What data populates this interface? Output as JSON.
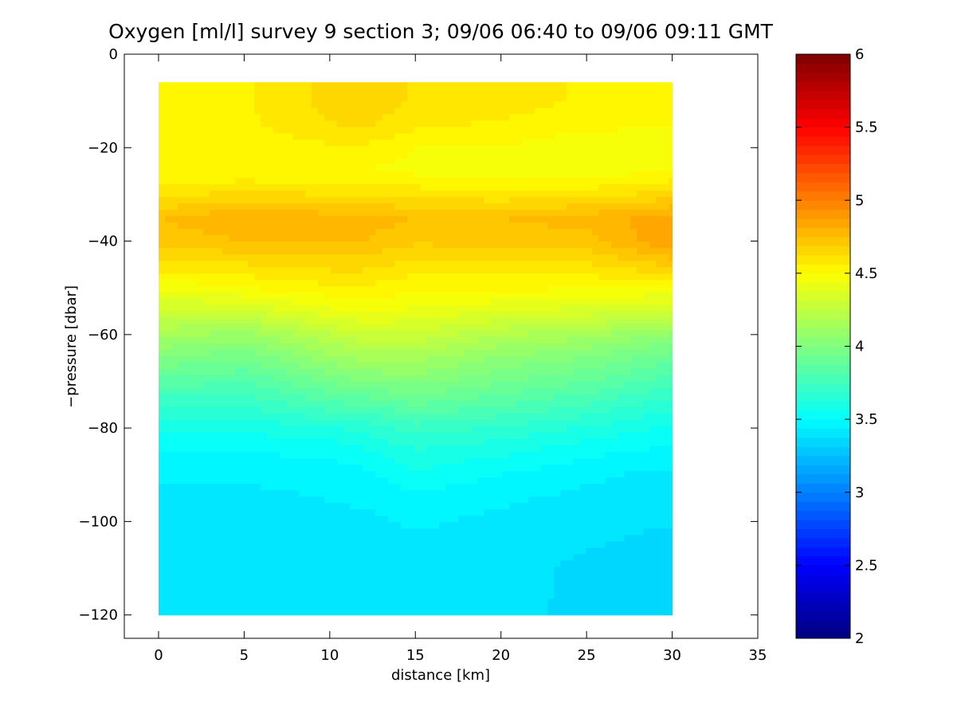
{
  "chart_data": {
    "type": "heatmap",
    "title": "Oxygen [ml/l] survey 9 section 3; 09/06 06:40 to 09/06 09:11 GMT",
    "xlabel": "distance [km]",
    "ylabel": "−pressure [dbar]",
    "xlim": [
      -2,
      35
    ],
    "ylim": [
      -125,
      0
    ],
    "x_ticks": [
      0,
      5,
      10,
      15,
      20,
      25,
      30,
      35
    ],
    "x_tick_labels": [
      "0",
      "5",
      "10",
      "15",
      "20",
      "25",
      "30",
      "35"
    ],
    "y_ticks": [
      0,
      -20,
      -40,
      -60,
      -80,
      -100,
      -120
    ],
    "y_tick_labels": [
      "0",
      "−20",
      "−40",
      "−60",
      "−80",
      "−100",
      "−120"
    ],
    "grid": false,
    "colorscale": "jet",
    "colorbar": {
      "clim": [
        2,
        6
      ],
      "ticks": [
        2,
        2.5,
        3,
        3.5,
        4,
        4.5,
        5,
        5.5,
        6
      ],
      "tick_labels": [
        "2",
        "2.5",
        "3",
        "3.5",
        "4",
        "4.5",
        "5",
        "5.5",
        "6"
      ]
    },
    "data_extent": {
      "x": [
        0,
        30
      ],
      "y": [
        -120,
        -6
      ]
    },
    "field": {
      "x": [
        0,
        5,
        10,
        12,
        15,
        20,
        25,
        30
      ],
      "y": [
        -6,
        -10,
        -15,
        -20,
        -25,
        -30,
        -35,
        -40,
        -45,
        -50,
        -55,
        -60,
        -65,
        -70,
        -75,
        -80,
        -85,
        -90,
        -95,
        -100,
        -105,
        -110,
        -115,
        -120
      ],
      "values": [
        [
          4.5,
          4.55,
          4.65,
          4.66,
          4.62,
          4.6,
          4.55,
          4.5
        ],
        [
          4.5,
          4.55,
          4.65,
          4.66,
          4.62,
          4.6,
          4.55,
          4.5
        ],
        [
          4.5,
          4.55,
          4.62,
          4.64,
          4.58,
          4.55,
          4.52,
          4.5
        ],
        [
          4.5,
          4.52,
          4.55,
          4.55,
          4.5,
          4.5,
          4.45,
          4.48
        ],
        [
          4.5,
          4.5,
          4.5,
          4.5,
          4.48,
          4.45,
          4.45,
          4.5
        ],
        [
          4.6,
          4.65,
          4.62,
          4.62,
          4.6,
          4.58,
          4.6,
          4.65
        ],
        [
          4.75,
          4.8,
          4.78,
          4.78,
          4.75,
          4.75,
          4.78,
          4.85
        ],
        [
          4.72,
          4.75,
          4.75,
          4.75,
          4.7,
          4.72,
          4.72,
          4.88
        ],
        [
          4.6,
          4.62,
          4.65,
          4.65,
          4.6,
          4.6,
          4.62,
          4.7
        ],
        [
          4.45,
          4.5,
          4.55,
          4.55,
          4.52,
          4.52,
          4.5,
          4.5
        ],
        [
          4.3,
          4.32,
          4.42,
          4.45,
          4.42,
          4.38,
          4.35,
          4.3
        ],
        [
          4.15,
          4.1,
          4.25,
          4.3,
          4.3,
          4.2,
          4.15,
          4.05
        ],
        [
          4.0,
          3.95,
          4.1,
          4.15,
          4.15,
          4.05,
          4.0,
          3.9
        ],
        [
          3.85,
          3.82,
          3.95,
          4.0,
          4.02,
          3.95,
          3.88,
          3.78
        ],
        [
          3.7,
          3.7,
          3.8,
          3.82,
          3.88,
          3.82,
          3.75,
          3.65
        ],
        [
          3.58,
          3.58,
          3.62,
          3.65,
          3.72,
          3.68,
          3.62,
          3.55
        ],
        [
          3.5,
          3.5,
          3.52,
          3.55,
          3.62,
          3.58,
          3.52,
          3.48
        ],
        [
          3.45,
          3.45,
          3.46,
          3.48,
          3.55,
          3.5,
          3.45,
          3.42
        ],
        [
          3.42,
          3.42,
          3.44,
          3.45,
          3.48,
          3.45,
          3.42,
          3.4
        ],
        [
          3.4,
          3.4,
          3.42,
          3.42,
          3.45,
          3.42,
          3.4,
          3.38
        ],
        [
          3.38,
          3.4,
          3.4,
          3.41,
          3.42,
          3.4,
          3.38,
          3.35
        ],
        [
          3.38,
          3.38,
          3.4,
          3.4,
          3.42,
          3.4,
          3.36,
          3.35
        ],
        [
          3.38,
          3.38,
          3.4,
          3.4,
          3.4,
          3.4,
          3.36,
          3.34
        ],
        [
          3.38,
          3.38,
          3.4,
          3.4,
          3.4,
          3.4,
          3.35,
          3.34
        ]
      ]
    }
  }
}
